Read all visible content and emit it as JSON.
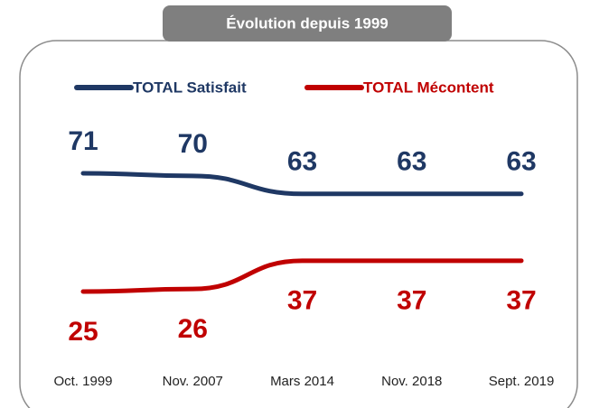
{
  "chart_data": {
    "type": "line",
    "title": "Évolution depuis 1999",
    "categories": [
      "Oct. 1999",
      "Nov. 2007",
      "Mars 2014",
      "Nov. 2018",
      "Sept. 2019"
    ],
    "series": [
      {
        "name": "TOTAL Satisfait",
        "color": "#1f3864",
        "values": [
          71,
          70,
          63,
          63,
          63
        ]
      },
      {
        "name": "TOTAL Mécontent",
        "color": "#c00000",
        "values": [
          25,
          26,
          37,
          37,
          37
        ]
      }
    ]
  }
}
